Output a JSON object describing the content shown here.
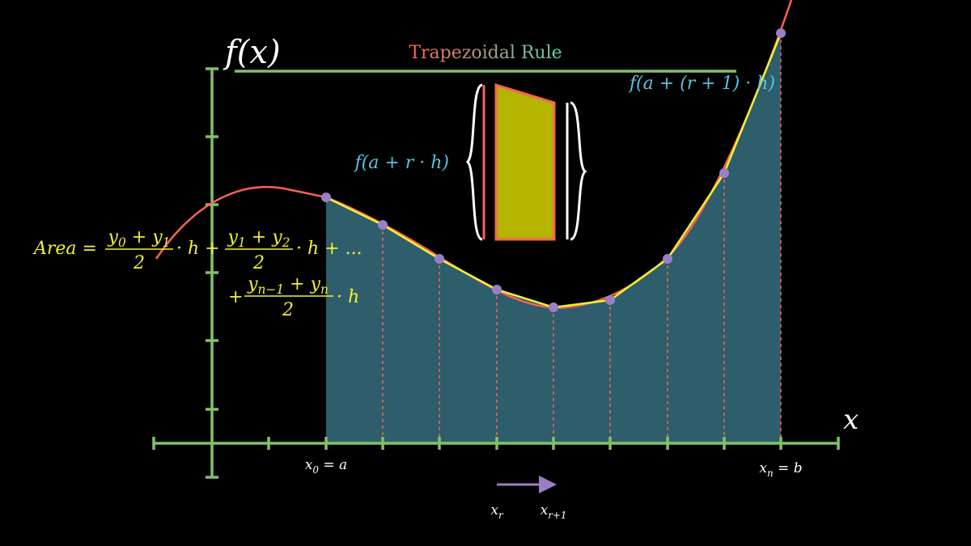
{
  "title": "Trapezoidal Rule",
  "axes": {
    "y_label": "f(x)",
    "x_label": "x"
  },
  "annotations": {
    "next_value": "f(a + (r + 1) · h)",
    "value": "f(a + r · h)"
  },
  "x_labels": {
    "start": [
      {
        "text": "x"
      },
      {
        "sub": "0"
      },
      {
        "text": " = a"
      }
    ],
    "end": [
      {
        "text": "x"
      },
      {
        "sub": "n"
      },
      {
        "text": " = b"
      }
    ],
    "current": [
      {
        "text": "x"
      },
      {
        "sub": "r"
      }
    ],
    "next": [
      {
        "text": "x"
      },
      {
        "sub": "r+1"
      }
    ]
  },
  "formula": {
    "lhs": "Area =",
    "frac1": {
      "num": [
        {
          "text": "y"
        },
        {
          "sub": "0"
        },
        {
          "text": " + y"
        },
        {
          "sub": "1"
        }
      ],
      "den": "2"
    },
    "mid": "· h +",
    "frac2": {
      "num": [
        {
          "text": "y"
        },
        {
          "sub": "1"
        },
        {
          "text": " + y"
        },
        {
          "sub": "2"
        }
      ],
      "den": "2"
    },
    "tail": "· h + ...",
    "plus": "+",
    "frac3": {
      "num": [
        {
          "text": "y"
        },
        {
          "sub": "n−1"
        },
        {
          "text": " + y"
        },
        {
          "sub": "n"
        }
      ],
      "den": "2"
    },
    "end": "· h"
  }
}
